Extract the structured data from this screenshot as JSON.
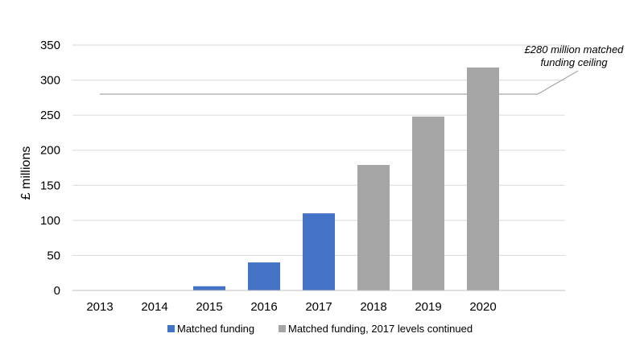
{
  "chart_data": {
    "type": "bar",
    "categories": [
      "2013",
      "2014",
      "2015",
      "2016",
      "2017",
      "2018",
      "2019",
      "2020"
    ],
    "series": [
      {
        "name": "Matched funding",
        "values": [
          0,
          0,
          6,
          40,
          110,
          null,
          null,
          null
        ]
      },
      {
        "name": "Matched funding, 2017 levels continued",
        "values": [
          null,
          null,
          null,
          null,
          null,
          179,
          248,
          318
        ]
      }
    ],
    "series_colors": [
      "#4472C4",
      "#A5A5A5"
    ],
    "ylabel": "£ millions",
    "ylim": [
      0,
      350
    ],
    "yticks": [
      "0",
      "50",
      "100",
      "150",
      "200",
      "250",
      "300",
      "350"
    ],
    "grid": true,
    "legend_position": "bottom",
    "reference_line": {
      "value": 280
    },
    "annotation": {
      "line1": "£280 million matched",
      "line2": "funding ceiling"
    }
  }
}
